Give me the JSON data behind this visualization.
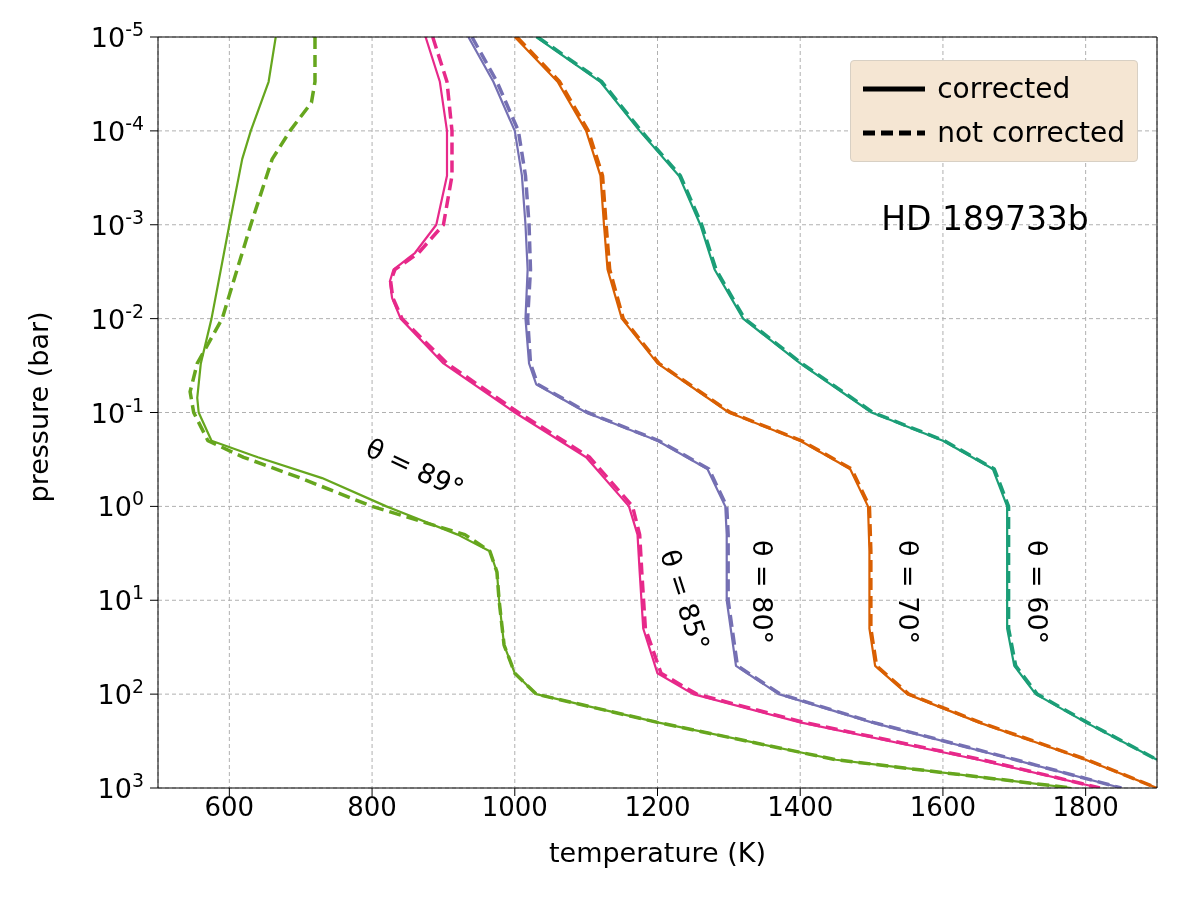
{
  "chart_data": {
    "type": "line",
    "xlabel": "temperature (K)",
    "ylabel": "pressure (bar)",
    "xlim": [
      500,
      1900
    ],
    "xticks": [
      600,
      800,
      1000,
      1200,
      1400,
      1600,
      1800
    ],
    "ylim": [
      1000,
      1e-05
    ],
    "log": "y",
    "yticks": [
      {
        "value": 1e-05,
        "label": "10$^{-5}$"
      },
      {
        "value": 0.0001,
        "label": "10$^{-4}$"
      },
      {
        "value": 0.001,
        "label": "10$^{-3}$"
      },
      {
        "value": 0.01,
        "label": "10$^{-2}$"
      },
      {
        "value": 0.1,
        "label": "10$^{-1}$"
      },
      {
        "value": 1,
        "label": "10$^{0}$"
      },
      {
        "value": 10,
        "label": "10$^{1}$"
      },
      {
        "value": 100,
        "label": "10$^{2}$"
      },
      {
        "value": 1000,
        "label": "10$^{3}$"
      }
    ],
    "grid": true,
    "legend": "top right",
    "marker": "none",
    "series": [
      {
        "color": "#66a61e",
        "line_style": "solid",
        "x": [
          665,
          655,
          630,
          618,
          600,
          575,
          560,
          555,
          557,
          575,
          640,
          730,
          820,
          920,
          965,
          975,
          978,
          985,
          1000,
          1030,
          1200,
          1450,
          1780
        ],
        "values": [
          1e-05,
          3e-05,
          0.0001,
          0.0002,
          0.001,
          0.01,
          0.03,
          0.07,
          0.1,
          0.2,
          0.3,
          0.5,
          1,
          2,
          3,
          5,
          10,
          30,
          60,
          100,
          200,
          500,
          1000
        ]
      },
      {
        "color": "#66a61e",
        "line_style": "dashed",
        "x": [
          720,
          720,
          715,
          685,
          660,
          630,
          590,
          555,
          545,
          550,
          570,
          620,
          700,
          800,
          930,
          965,
          975,
          978,
          985,
          1000,
          1030,
          1200,
          1450,
          1780
        ],
        "values": [
          1e-05,
          3e-05,
          5e-05,
          0.0001,
          0.0002,
          0.001,
          0.01,
          0.03,
          0.06,
          0.1,
          0.2,
          0.3,
          0.5,
          1,
          2,
          3,
          5,
          10,
          30,
          60,
          100,
          200,
          500,
          1000
        ]
      },
      {
        "color": "#e7298a",
        "line_style": "solid",
        "x": [
          875,
          895,
          905,
          905,
          890,
          860,
          830,
          825,
          828,
          840,
          900,
          1000,
          1100,
          1160,
          1172,
          1175,
          1180,
          1200,
          1250,
          1400,
          1650,
          1820
        ],
        "values": [
          1e-05,
          3e-05,
          0.0001,
          0.0003,
          0.001,
          0.002,
          0.003,
          0.004,
          0.006,
          0.01,
          0.03,
          0.1,
          0.3,
          1,
          2,
          5,
          20,
          60,
          100,
          200,
          500,
          1000
        ]
      },
      {
        "color": "#e7298a",
        "line_style": "dashed",
        "x": [
          885,
          905,
          912,
          912,
          900,
          865,
          832,
          826,
          829,
          842,
          905,
          1005,
          1105,
          1165,
          1175,
          1178,
          1183,
          1205,
          1255,
          1405,
          1655,
          1820
        ],
        "values": [
          1e-05,
          3e-05,
          0.0001,
          0.0003,
          0.001,
          0.002,
          0.003,
          0.004,
          0.006,
          0.01,
          0.03,
          0.1,
          0.3,
          1,
          2,
          5,
          20,
          60,
          100,
          200,
          500,
          1000
        ]
      },
      {
        "color": "#7570b3",
        "line_style": "solid",
        "x": [
          935,
          970,
          1000,
          1010,
          1015,
          1018,
          1015,
          1020,
          1030,
          1100,
          1200,
          1270,
          1295,
          1297,
          1297,
          1310,
          1370,
          1500,
          1700,
          1850
        ],
        "values": [
          1e-05,
          3e-05,
          0.0001,
          0.0003,
          0.001,
          0.003,
          0.01,
          0.03,
          0.05,
          0.1,
          0.2,
          0.4,
          1,
          2,
          10,
          50,
          100,
          200,
          500,
          1000
        ]
      },
      {
        "color": "#7570b3",
        "line_style": "dashed",
        "x": [
          940,
          975,
          1005,
          1015,
          1020,
          1022,
          1018,
          1022,
          1032,
          1102,
          1202,
          1272,
          1297,
          1299,
          1299,
          1312,
          1372,
          1502,
          1702,
          1850
        ],
        "values": [
          1e-05,
          3e-05,
          0.0001,
          0.0003,
          0.001,
          0.003,
          0.01,
          0.03,
          0.05,
          0.1,
          0.2,
          0.4,
          1,
          2,
          10,
          50,
          100,
          200,
          500,
          1000
        ]
      },
      {
        "color": "#d95f02",
        "line_style": "solid",
        "x": [
          1000,
          1060,
          1100,
          1120,
          1125,
          1130,
          1150,
          1200,
          1300,
          1400,
          1470,
          1495,
          1497,
          1497,
          1505,
          1550,
          1650,
          1800,
          1900
        ],
        "values": [
          1e-05,
          3e-05,
          0.0001,
          0.0003,
          0.001,
          0.003,
          0.01,
          0.03,
          0.1,
          0.2,
          0.4,
          1,
          3,
          20,
          50,
          100,
          200,
          500,
          1000
        ]
      },
      {
        "color": "#d95f02",
        "line_style": "dashed",
        "x": [
          1003,
          1063,
          1103,
          1123,
          1128,
          1133,
          1152,
          1202,
          1302,
          1402,
          1472,
          1497,
          1499,
          1499,
          1507,
          1552,
          1652,
          1802,
          1900
        ],
        "values": [
          1e-05,
          3e-05,
          0.0001,
          0.0003,
          0.001,
          0.003,
          0.01,
          0.03,
          0.1,
          0.2,
          0.4,
          1,
          3,
          20,
          50,
          100,
          200,
          500,
          1000
        ]
      },
      {
        "color": "#1b9e77",
        "line_style": "solid",
        "x": [
          1030,
          1120,
          1175,
          1230,
          1260,
          1280,
          1320,
          1400,
          1500,
          1600,
          1670,
          1690,
          1690,
          1690,
          1700,
          1730,
          1800,
          1900
        ],
        "values": [
          1e-05,
          3e-05,
          0.0001,
          0.0003,
          0.001,
          0.003,
          0.01,
          0.03,
          0.1,
          0.2,
          0.4,
          1,
          3,
          20,
          50,
          100,
          200,
          500
        ]
      },
      {
        "color": "#1b9e77",
        "line_style": "dashed",
        "x": [
          1032,
          1122,
          1177,
          1232,
          1262,
          1282,
          1322,
          1402,
          1502,
          1602,
          1672,
          1692,
          1692,
          1692,
          1702,
          1732,
          1802,
          1900
        ],
        "values": [
          1e-05,
          3e-05,
          0.0001,
          0.0003,
          0.001,
          0.003,
          0.01,
          0.03,
          0.1,
          0.2,
          0.4,
          1,
          3,
          20,
          50,
          100,
          200,
          500
        ]
      },
      {
        "name": "corrected",
        "color": "#000000",
        "line_style": "solid"
      },
      {
        "name": "not corrected",
        "color": "#000000",
        "line_style": "dashed"
      }
    ],
    "annotations": [
      "HD 189733b",
      "θ = 89°",
      "θ = 85°",
      "θ = 80°",
      "θ = 70°",
      "θ = 60°"
    ]
  }
}
